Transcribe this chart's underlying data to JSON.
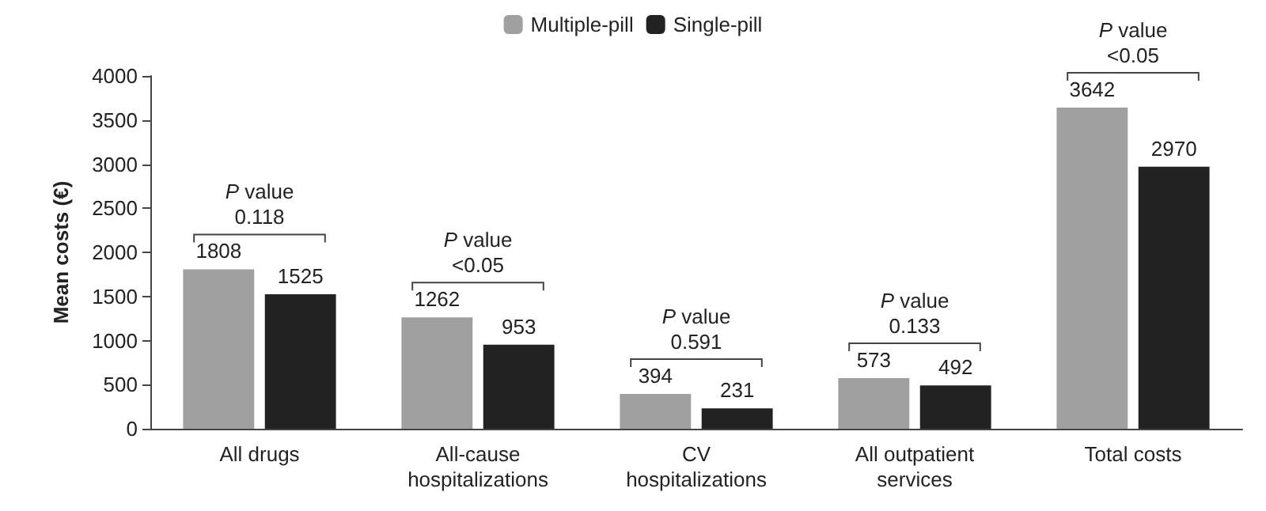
{
  "chart_data": {
    "type": "bar",
    "ylabel": "Mean costs (€)",
    "categories": [
      "All drugs",
      "All-cause\nhospitalizations",
      "CV\nhospitalizations",
      "All outpatient\nservices",
      "Total costs"
    ],
    "series": [
      {
        "name": "Multiple-pill",
        "color": "#a0a0a0",
        "values": [
          1808,
          1262,
          394,
          573,
          3642
        ]
      },
      {
        "name": "Single-pill",
        "color": "#222222",
        "values": [
          1525,
          953,
          231,
          492,
          2970
        ]
      }
    ],
    "ylim": [
      0,
      4000
    ],
    "yticks": [
      0,
      500,
      1000,
      1500,
      2000,
      2500,
      3000,
      3500,
      4000
    ],
    "annotations": [
      "P value\n0.118",
      "P value\n<0.05",
      "P value\n0.591",
      "P value\n0.133",
      "P value\n<0.05"
    ],
    "data_labels": true,
    "grid": false,
    "legend": "top"
  }
}
